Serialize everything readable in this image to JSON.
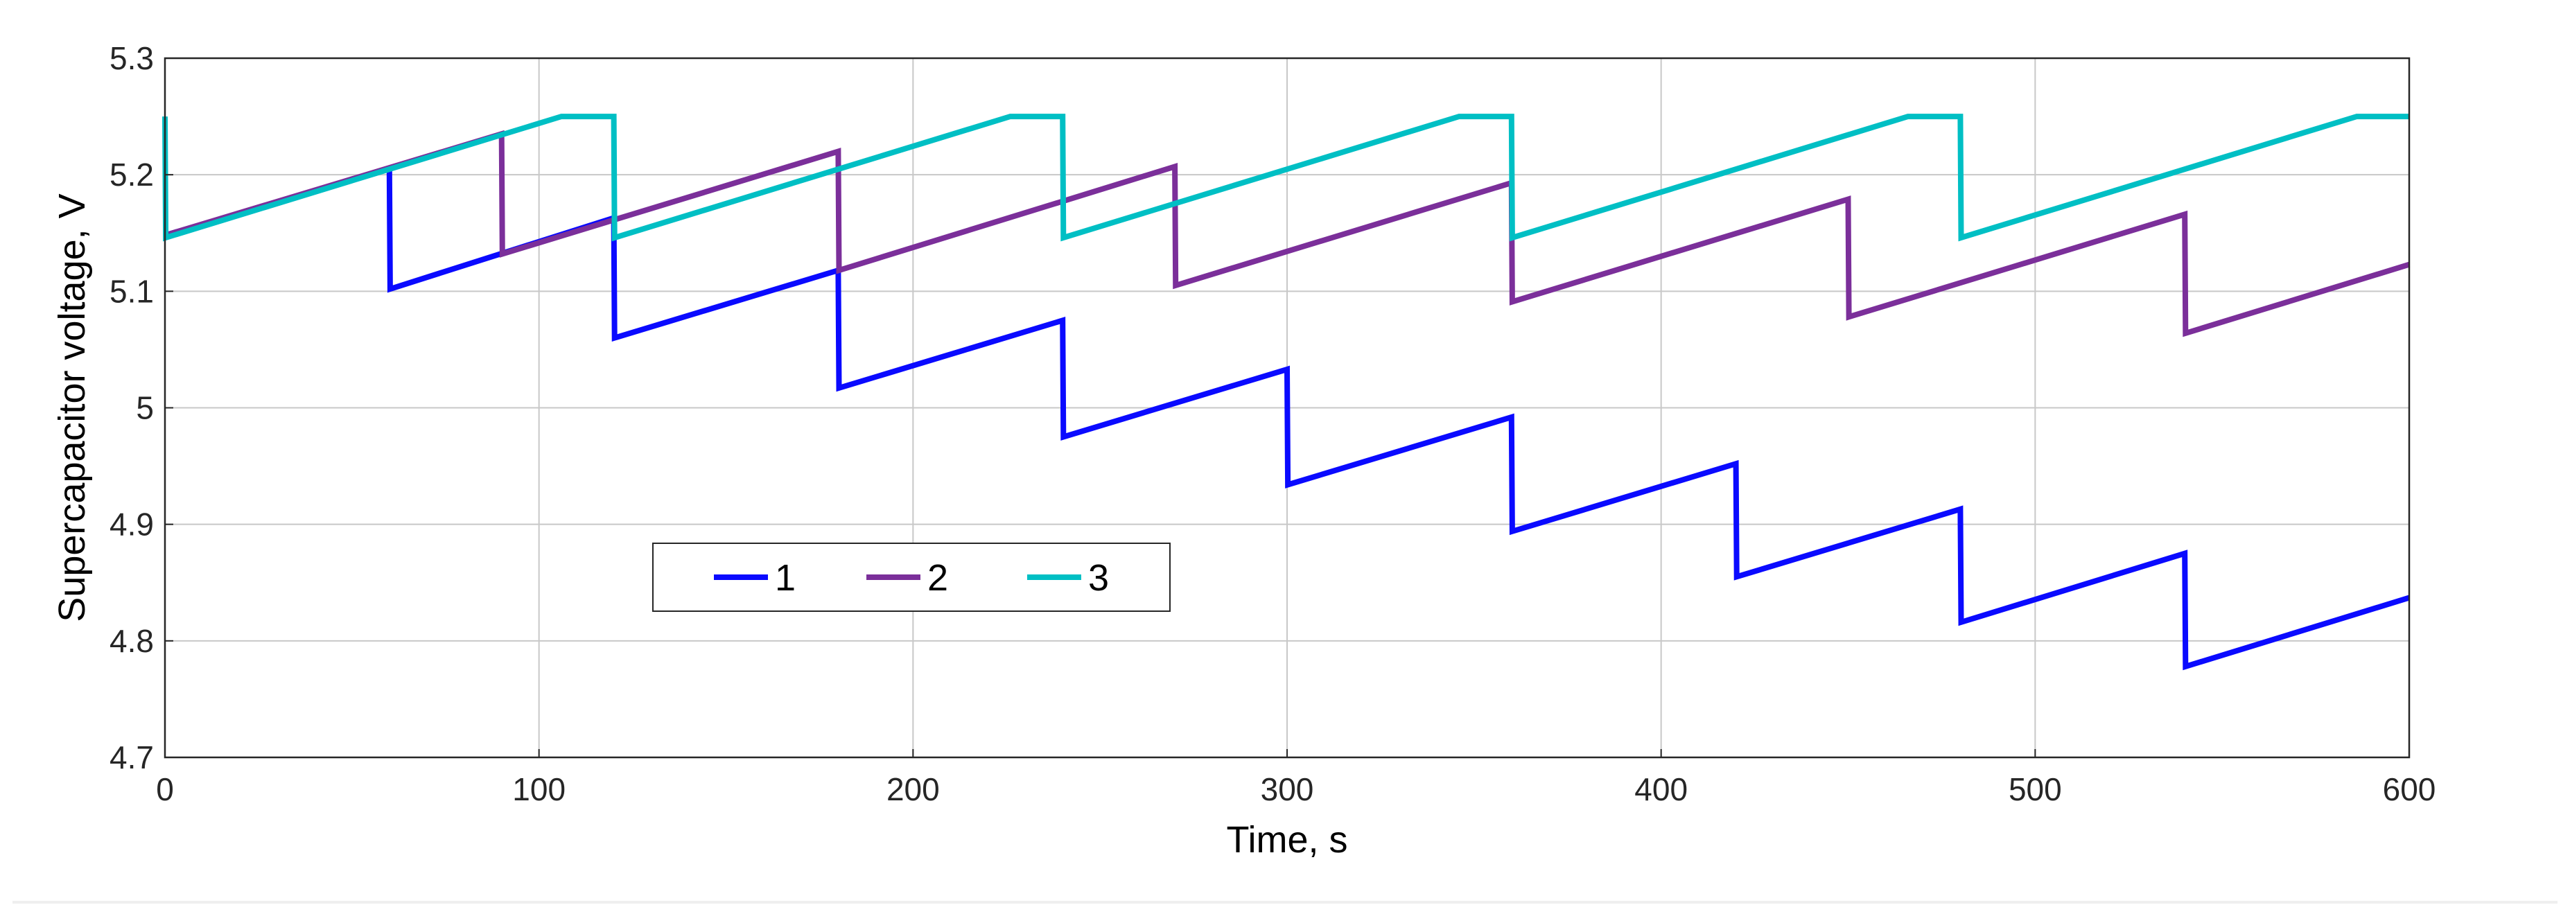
{
  "chart_data": {
    "type": "line",
    "title": "",
    "xlabel": "Time, s",
    "ylabel": "Supercapacitor voltage, V",
    "xlim": [
      0,
      600
    ],
    "ylim": [
      4.7,
      5.3
    ],
    "xticks": [
      0,
      100,
      200,
      300,
      400,
      500,
      600
    ],
    "xtick_labels": [
      "0",
      "100",
      "200",
      "300",
      "400",
      "500",
      "600"
    ],
    "yticks": [
      4.7,
      4.8,
      4.9,
      5.0,
      5.1,
      5.2,
      5.3
    ],
    "ytick_labels": [
      "4.7",
      "4.8",
      "4.9",
      "5",
      "5.1",
      "5.2",
      "5.3"
    ],
    "grid": true,
    "legend": {
      "placement": "lower-center-left",
      "orientation": "horizontal"
    },
    "series": [
      {
        "name": "1",
        "color": "#0a0aff",
        "x": [
          0,
          60,
          60.2,
          120,
          120.2,
          180,
          180.2,
          240,
          240.2,
          300,
          300.2,
          360,
          360.2,
          420,
          420.2,
          480,
          480.2,
          540,
          540.2,
          600
        ],
        "y": [
          5.148,
          5.205,
          5.102,
          5.163,
          5.06,
          5.118,
          5.017,
          5.075,
          4.975,
          5.033,
          4.934,
          4.992,
          4.894,
          4.952,
          4.855,
          4.913,
          4.816,
          4.875,
          4.778,
          4.837
        ]
      },
      {
        "name": "2",
        "color": "#7b2f9a",
        "x": [
          0,
          90,
          90.2,
          180,
          180.2,
          270,
          270.2,
          360,
          360.2,
          450,
          450.2,
          540,
          540.2,
          600
        ],
        "y": [
          5.148,
          5.235,
          5.132,
          5.22,
          5.118,
          5.207,
          5.105,
          5.193,
          5.091,
          5.179,
          5.078,
          5.166,
          5.064,
          5.123
        ]
      },
      {
        "name": "3",
        "color": "#00bfc4",
        "x": [
          0,
          0.2,
          106,
          120,
          120.2,
          226,
          240,
          240.2,
          346,
          360,
          360.2,
          466,
          480,
          480.2,
          586,
          600
        ],
        "y": [
          5.25,
          5.146,
          5.25,
          5.25,
          5.146,
          5.25,
          5.25,
          5.146,
          5.25,
          5.25,
          5.146,
          5.25,
          5.25,
          5.146,
          5.25,
          5.25
        ]
      }
    ]
  }
}
